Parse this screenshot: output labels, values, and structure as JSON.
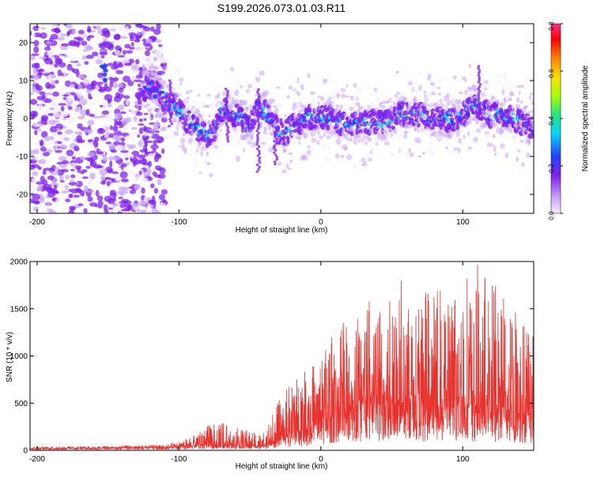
{
  "figure": {
    "title": "S199.2026.073.01.03.R11"
  },
  "chart_data": [
    {
      "type": "heatmap",
      "name": "spectrogram",
      "xlabel": "Height of straight line (km)",
      "ylabel": "Frequency (Hz)",
      "xlim": [
        -205,
        150
      ],
      "ylim": [
        -25,
        25
      ],
      "xticks": [
        -200,
        -100,
        0,
        100
      ],
      "yticks": [
        -20,
        -10,
        0,
        10,
        20
      ],
      "ridge_center_hz": [
        [
          -120,
          8
        ],
        [
          -110,
          5
        ],
        [
          -100,
          2
        ],
        [
          -90,
          -2
        ],
        [
          -80,
          -5
        ],
        [
          -75,
          -3
        ],
        [
          -70,
          2
        ],
        [
          -65,
          3
        ],
        [
          -60,
          1
        ],
        [
          -50,
          -2
        ],
        [
          -45,
          3
        ],
        [
          -40,
          2
        ],
        [
          -30,
          -3
        ],
        [
          -25,
          -4
        ],
        [
          -20,
          -1
        ],
        [
          -10,
          0
        ],
        [
          0,
          1
        ],
        [
          5,
          0
        ],
        [
          10,
          -1
        ],
        [
          20,
          -2
        ],
        [
          30,
          -1
        ],
        [
          40,
          -1
        ],
        [
          50,
          0
        ],
        [
          55,
          2
        ],
        [
          60,
          1
        ],
        [
          70,
          1
        ],
        [
          80,
          0
        ],
        [
          90,
          0
        ],
        [
          100,
          0
        ],
        [
          105,
          3
        ],
        [
          110,
          4
        ],
        [
          115,
          2
        ],
        [
          120,
          1
        ],
        [
          130,
          1
        ],
        [
          140,
          -1
        ],
        [
          150,
          -2
        ]
      ],
      "colorbar": {
        "label": "Normalized spectral amplitude",
        "range": [
          0.0,
          0.8
        ],
        "ticks": [
          0.0,
          0.2,
          0.4,
          0.6,
          0.8
        ],
        "tick_labels": [
          "0.0",
          "0.2",
          "0.4",
          "0.6",
          "0.8"
        ],
        "colors": [
          "#f4ecff",
          "#c8a8f8",
          "#8020f0",
          "#2040ff",
          "#00d8ff",
          "#20e880",
          "#a8ff00",
          "#ffe000",
          "#ff8000",
          "#ff0000",
          "#ff3090"
        ]
      }
    },
    {
      "type": "line",
      "name": "snr",
      "xlabel": "Height of straight line (km)",
      "ylabel": "SNR (10 * v/v)",
      "xlim": [
        -205,
        150
      ],
      "ylim": [
        0,
        2000
      ],
      "xticks": [
        -200,
        -100,
        0,
        100
      ],
      "yticks": [
        0,
        500,
        1000,
        1500,
        2000
      ],
      "color": "#e8322e",
      "envelope": [
        [
          -205,
          20,
          40
        ],
        [
          -150,
          25,
          45
        ],
        [
          -110,
          30,
          60
        ],
        [
          -95,
          40,
          120
        ],
        [
          -85,
          60,
          240
        ],
        [
          -70,
          70,
          300
        ],
        [
          -55,
          50,
          220
        ],
        [
          -40,
          50,
          210
        ],
        [
          -30,
          100,
          520
        ],
        [
          -20,
          180,
          750
        ],
        [
          -10,
          230,
          850
        ],
        [
          0,
          300,
          1000
        ],
        [
          10,
          380,
          1300
        ],
        [
          20,
          440,
          1450
        ],
        [
          30,
          470,
          1550
        ],
        [
          40,
          480,
          1650
        ],
        [
          50,
          500,
          1750
        ],
        [
          60,
          510,
          1850
        ],
        [
          70,
          500,
          1750
        ],
        [
          80,
          480,
          1700
        ],
        [
          90,
          450,
          1700
        ],
        [
          100,
          450,
          1800
        ],
        [
          108,
          460,
          2000
        ],
        [
          120,
          450,
          1850
        ],
        [
          130,
          420,
          1700
        ],
        [
          140,
          380,
          1500
        ],
        [
          150,
          350,
          1400
        ]
      ]
    }
  ]
}
